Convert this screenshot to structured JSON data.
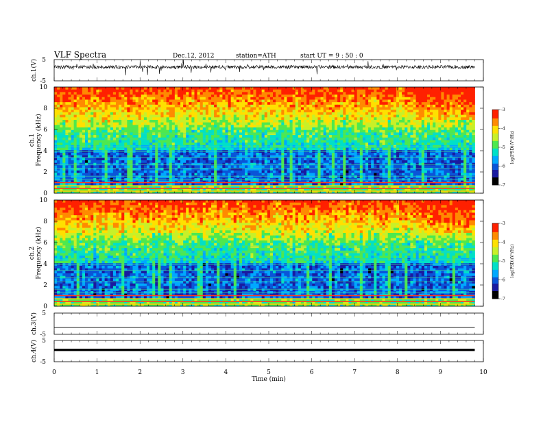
{
  "header": {
    "title": "VLF  Spectra",
    "date": "Dec.12, 2012",
    "station": "station=ATH",
    "start_ut": "start  UT  =   9 : 50 : 0"
  },
  "colors": {
    "scale": [
      "#000000",
      "#1a1aa0",
      "#0a55d8",
      "#00a8ff",
      "#00e0c8",
      "#4ee84e",
      "#c8f028",
      "#ffe000",
      "#ff8a00",
      "#ff2000",
      "#ffffff"
    ],
    "waveform": "#000000"
  },
  "chart_data": [
    {
      "type": "line",
      "panel": "ch1-waveform",
      "ylabel": "ch.1(V)",
      "ylim": [
        -5,
        5
      ],
      "yticks": [
        "5",
        "-5"
      ],
      "xlim": [
        0,
        10
      ],
      "series": [
        {
          "description": "broadband noisy signal with spikes, baseline near +1.5 V",
          "values": [
            1.6,
            1.2,
            1.8,
            1.4,
            1.5,
            1.3,
            1.7,
            1.5,
            1.4,
            1.6
          ]
        }
      ]
    },
    {
      "type": "heatmap",
      "panel": "ch1-spectrogram",
      "ylabel": "ch.1\nFrequency (kHz)",
      "ylabel_line1": "ch.1",
      "ylabel_line2": "Frequency (kHz)",
      "ylim": [
        0,
        10
      ],
      "yticks": [
        "0",
        "2",
        "4",
        "6",
        "8",
        "10"
      ],
      "xlim": [
        0,
        10
      ],
      "data_end_min": 9.8,
      "colorbar": {
        "label": "log(PSD)(V²/Hz)",
        "range": [
          -7,
          -3
        ],
        "ticks": [
          "-3",
          "-4",
          "-5",
          "-6",
          "-7"
        ]
      }
    },
    {
      "type": "heatmap",
      "panel": "ch2-spectrogram",
      "ylabel": "ch.2\nFrequency (kHz)",
      "ylabel_line1": "ch.2",
      "ylabel_line2": "Frequency (kHz)",
      "ylim": [
        0,
        10
      ],
      "yticks": [
        "0",
        "2",
        "4",
        "6",
        "8",
        "10"
      ],
      "xlim": [
        0,
        10
      ],
      "data_end_min": 9.8,
      "colorbar": {
        "label": "log(PSD)(V²/Hz)",
        "range": [
          -7,
          -3
        ],
        "ticks": [
          "-3",
          "-4",
          "-5",
          "-6",
          "-7"
        ]
      }
    },
    {
      "type": "line",
      "panel": "ch3-waveform",
      "ylabel": "ch.3(V)",
      "ylim": [
        -5,
        5
      ],
      "yticks": [
        "5",
        "-5"
      ],
      "xlim": [
        0,
        10
      ],
      "series": [
        {
          "description": "flat trace near 0 V",
          "values": [
            0,
            0,
            0,
            0,
            0,
            0,
            0,
            0,
            0,
            0
          ]
        }
      ]
    },
    {
      "type": "line",
      "panel": "ch4-waveform",
      "ylabel": "ch.4(V)",
      "ylim": [
        -5,
        5
      ],
      "yticks": [
        "5",
        "-5"
      ],
      "xlim": [
        0,
        10
      ],
      "series": [
        {
          "description": "flat thick trace near 0 V",
          "values": [
            0,
            0,
            0,
            0,
            0,
            0,
            0,
            0,
            0,
            0
          ]
        }
      ]
    }
  ],
  "xaxis": {
    "label": "Time  (min)",
    "ticks": [
      "0",
      "1",
      "2",
      "3",
      "4",
      "5",
      "6",
      "7",
      "8",
      "9",
      "10"
    ]
  }
}
